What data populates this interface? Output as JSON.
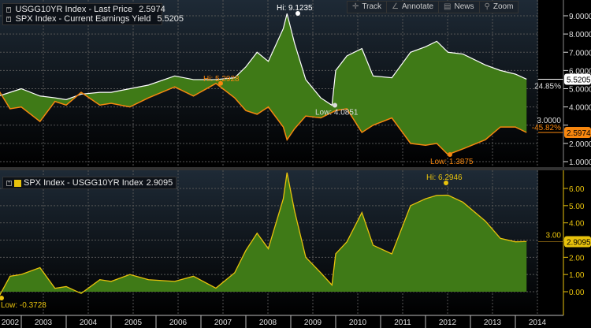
{
  "toolbar": {
    "items": [
      {
        "icon": "crosshair-icon",
        "label": "Track"
      },
      {
        "icon": "pencil-icon",
        "label": "Annotate"
      },
      {
        "icon": "news-icon",
        "label": "News"
      },
      {
        "icon": "magnifier-icon",
        "label": "Zoom"
      }
    ]
  },
  "chart_data": [
    {
      "type": "area",
      "panel": "top",
      "legend": [
        {
          "name": "USGG10YR Index - Last Price",
          "value": "2.5974",
          "color": "#f7870f"
        },
        {
          "name": "SPX Index - Current Earnings Yield",
          "value": "5.5205",
          "color": "#ffffff"
        }
      ],
      "x": [
        "2002-07",
        "2002-10",
        "2003-01",
        "2003-06",
        "2003-10",
        "2004-01",
        "2004-05",
        "2004-10",
        "2005-01",
        "2005-06",
        "2005-11",
        "2006-06",
        "2006-11",
        "2007-05",
        "2007-10",
        "2008-01",
        "2008-04",
        "2008-07",
        "2008-11",
        "2008-12",
        "2009-02",
        "2009-05",
        "2009-09",
        "2009-12",
        "2010-01",
        "2010-04",
        "2010-08",
        "2010-11",
        "2011-04",
        "2011-09",
        "2012-01",
        "2012-04",
        "2012-07",
        "2012-11",
        "2013-05",
        "2013-09",
        "2014-01",
        "2014-04"
      ],
      "series": [
        {
          "name": "USGG10YR Index - Last Price",
          "color": "#f7870f",
          "values": [
            4.9,
            3.9,
            4.0,
            3.2,
            4.3,
            4.1,
            4.8,
            4.1,
            4.2,
            4.0,
            4.5,
            5.1,
            4.6,
            5.29,
            4.5,
            3.8,
            3.6,
            4.0,
            2.9,
            2.2,
            2.8,
            3.5,
            3.4,
            3.7,
            3.8,
            3.9,
            2.6,
            3.0,
            3.4,
            2.0,
            1.9,
            2.0,
            1.39,
            1.7,
            2.2,
            2.9,
            2.9,
            2.6
          ]
        },
        {
          "name": "SPX Index - Current Earnings Yield",
          "color": "#ffffff",
          "values": [
            4.6,
            4.8,
            5.0,
            4.6,
            4.5,
            4.4,
            4.7,
            4.8,
            4.8,
            5.0,
            5.2,
            5.7,
            5.5,
            5.5,
            5.6,
            6.2,
            7.0,
            6.5,
            8.3,
            9.12,
            7.5,
            5.5,
            4.5,
            4.09,
            6.0,
            6.8,
            7.2,
            5.7,
            5.6,
            7.0,
            7.3,
            7.6,
            7.0,
            6.9,
            6.3,
            6.0,
            5.8,
            5.52
          ]
        }
      ],
      "yticks": [
        "1.0000",
        "2.0000",
        "3.0000",
        "4.0000",
        "5.0000",
        "6.0000",
        "7.0000",
        "8.0000",
        "9.0000"
      ],
      "ylim": [
        0.6,
        9.8
      ],
      "annotations": [
        {
          "text": "Hi: 9.1235"
        },
        {
          "text": "Hi: 5.2928"
        },
        {
          "text": "Low: 4.0851"
        },
        {
          "text": "Low: 1.3875"
        },
        {
          "text": "24.85%"
        },
        {
          "text": "-45.82%"
        }
      ],
      "last_labels": [
        "5.5205",
        "2.5974"
      ]
    },
    {
      "type": "area",
      "panel": "bottom",
      "legend": [
        {
          "name": "SPX Index - USGG10YR Index",
          "value": "2.9095",
          "color": "#e8c20c"
        }
      ],
      "series_note": "",
      "yticks": [
        "0.00",
        "1.00",
        "2.00",
        "3.00",
        "4.00",
        "5.00",
        "6.00"
      ],
      "ylim": [
        -1.1,
        6.9
      ],
      "annotations": [
        {
          "text": "Hi: 6.2946"
        },
        {
          "text": "Low: -0.3728"
        }
      ],
      "last_label": "2.9095"
    }
  ],
  "xaxis": {
    "ticks": [
      "2002",
      "2003",
      "2004",
      "2005",
      "2006",
      "2007",
      "2008",
      "2009",
      "2010",
      "2011",
      "2012",
      "2013",
      "2014"
    ]
  },
  "colors": {
    "fill": "#3f7a17",
    "orange": "#f7870f",
    "yellow": "#e8c20c",
    "white": "#ffffff"
  }
}
